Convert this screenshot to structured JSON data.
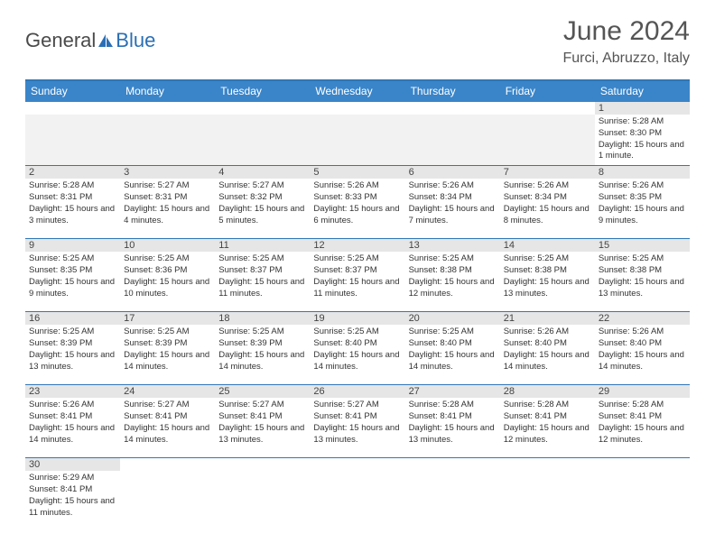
{
  "brand": {
    "general": "General",
    "blue": "Blue"
  },
  "title": "June 2024",
  "location": "Furci, Abruzzo, Italy",
  "colors": {
    "header_bg": "#3a85c9",
    "border": "#2f77b7",
    "daynum_bg": "#e6e6e6",
    "empty_bg": "#f2f2f2"
  },
  "day_headers": [
    "Sunday",
    "Monday",
    "Tuesday",
    "Wednesday",
    "Thursday",
    "Friday",
    "Saturday"
  ],
  "weeks": [
    {
      "nums": [
        "",
        "",
        "",
        "",
        "",
        "",
        "1"
      ],
      "cells": [
        null,
        null,
        null,
        null,
        null,
        null,
        {
          "sr": "5:28 AM",
          "ss": "8:30 PM",
          "dl": "15 hours and 1 minute."
        }
      ]
    },
    {
      "nums": [
        "2",
        "3",
        "4",
        "5",
        "6",
        "7",
        "8"
      ],
      "cells": [
        {
          "sr": "5:28 AM",
          "ss": "8:31 PM",
          "dl": "15 hours and 3 minutes."
        },
        {
          "sr": "5:27 AM",
          "ss": "8:31 PM",
          "dl": "15 hours and 4 minutes."
        },
        {
          "sr": "5:27 AM",
          "ss": "8:32 PM",
          "dl": "15 hours and 5 minutes."
        },
        {
          "sr": "5:26 AM",
          "ss": "8:33 PM",
          "dl": "15 hours and 6 minutes."
        },
        {
          "sr": "5:26 AM",
          "ss": "8:34 PM",
          "dl": "15 hours and 7 minutes."
        },
        {
          "sr": "5:26 AM",
          "ss": "8:34 PM",
          "dl": "15 hours and 8 minutes."
        },
        {
          "sr": "5:26 AM",
          "ss": "8:35 PM",
          "dl": "15 hours and 9 minutes."
        }
      ]
    },
    {
      "nums": [
        "9",
        "10",
        "11",
        "12",
        "13",
        "14",
        "15"
      ],
      "cells": [
        {
          "sr": "5:25 AM",
          "ss": "8:35 PM",
          "dl": "15 hours and 9 minutes."
        },
        {
          "sr": "5:25 AM",
          "ss": "8:36 PM",
          "dl": "15 hours and 10 minutes."
        },
        {
          "sr": "5:25 AM",
          "ss": "8:37 PM",
          "dl": "15 hours and 11 minutes."
        },
        {
          "sr": "5:25 AM",
          "ss": "8:37 PM",
          "dl": "15 hours and 11 minutes."
        },
        {
          "sr": "5:25 AM",
          "ss": "8:38 PM",
          "dl": "15 hours and 12 minutes."
        },
        {
          "sr": "5:25 AM",
          "ss": "8:38 PM",
          "dl": "15 hours and 13 minutes."
        },
        {
          "sr": "5:25 AM",
          "ss": "8:38 PM",
          "dl": "15 hours and 13 minutes."
        }
      ]
    },
    {
      "nums": [
        "16",
        "17",
        "18",
        "19",
        "20",
        "21",
        "22"
      ],
      "cells": [
        {
          "sr": "5:25 AM",
          "ss": "8:39 PM",
          "dl": "15 hours and 13 minutes."
        },
        {
          "sr": "5:25 AM",
          "ss": "8:39 PM",
          "dl": "15 hours and 14 minutes."
        },
        {
          "sr": "5:25 AM",
          "ss": "8:39 PM",
          "dl": "15 hours and 14 minutes."
        },
        {
          "sr": "5:25 AM",
          "ss": "8:40 PM",
          "dl": "15 hours and 14 minutes."
        },
        {
          "sr": "5:25 AM",
          "ss": "8:40 PM",
          "dl": "15 hours and 14 minutes."
        },
        {
          "sr": "5:26 AM",
          "ss": "8:40 PM",
          "dl": "15 hours and 14 minutes."
        },
        {
          "sr": "5:26 AM",
          "ss": "8:40 PM",
          "dl": "15 hours and 14 minutes."
        }
      ]
    },
    {
      "nums": [
        "23",
        "24",
        "25",
        "26",
        "27",
        "28",
        "29"
      ],
      "cells": [
        {
          "sr": "5:26 AM",
          "ss": "8:41 PM",
          "dl": "15 hours and 14 minutes."
        },
        {
          "sr": "5:27 AM",
          "ss": "8:41 PM",
          "dl": "15 hours and 14 minutes."
        },
        {
          "sr": "5:27 AM",
          "ss": "8:41 PM",
          "dl": "15 hours and 13 minutes."
        },
        {
          "sr": "5:27 AM",
          "ss": "8:41 PM",
          "dl": "15 hours and 13 minutes."
        },
        {
          "sr": "5:28 AM",
          "ss": "8:41 PM",
          "dl": "15 hours and 13 minutes."
        },
        {
          "sr": "5:28 AM",
          "ss": "8:41 PM",
          "dl": "15 hours and 12 minutes."
        },
        {
          "sr": "5:28 AM",
          "ss": "8:41 PM",
          "dl": "15 hours and 12 minutes."
        }
      ]
    },
    {
      "nums": [
        "30",
        "",
        "",
        "",
        "",
        "",
        ""
      ],
      "cells": [
        {
          "sr": "5:29 AM",
          "ss": "8:41 PM",
          "dl": "15 hours and 11 minutes."
        },
        null,
        null,
        null,
        null,
        null,
        null
      ]
    }
  ],
  "labels": {
    "sunrise": "Sunrise:",
    "sunset": "Sunset:",
    "daylight": "Daylight:"
  }
}
